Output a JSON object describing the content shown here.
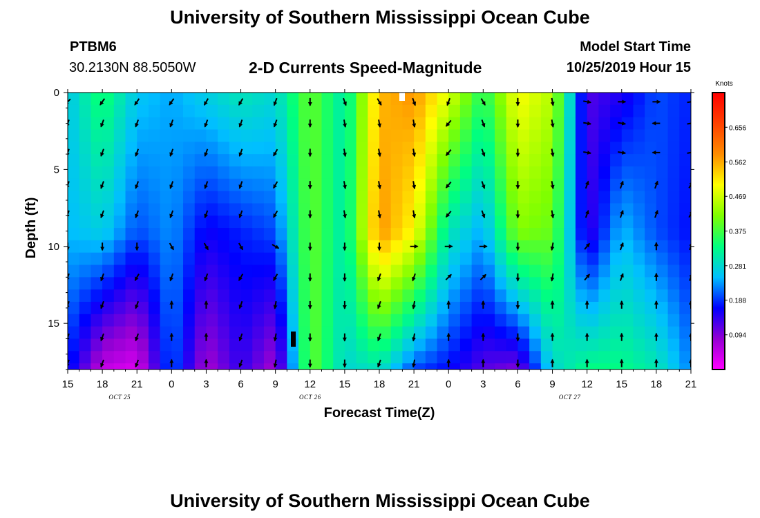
{
  "header": {
    "title": "University of Southern Mississippi Ocean Cube",
    "station": "PTBM6",
    "coords": "30.2130N 88.5050W",
    "subtitle": "2-D Currents Speed-Magnitude",
    "model_start_label": "Model Start Time",
    "model_start_value": "10/25/2019 Hour 15"
  },
  "footer": {
    "title": "University of Southern Mississippi Ocean Cube"
  },
  "chart_data": {
    "type": "heatmap",
    "title": "2-D Currents Speed-Magnitude",
    "xlabel": "Forecast Time(Z)",
    "ylabel": "Depth (ft)",
    "x_hours": [
      0,
      54
    ],
    "ylim": [
      0,
      18
    ],
    "x_ticks": [
      {
        "h": 0,
        "label": "15"
      },
      {
        "h": 3,
        "label": "18"
      },
      {
        "h": 6,
        "label": "21"
      },
      {
        "h": 9,
        "label": "0"
      },
      {
        "h": 12,
        "label": "3"
      },
      {
        "h": 15,
        "label": "6"
      },
      {
        "h": 18,
        "label": "9"
      },
      {
        "h": 21,
        "label": "12"
      },
      {
        "h": 24,
        "label": "15"
      },
      {
        "h": 27,
        "label": "18"
      },
      {
        "h": 30,
        "label": "21"
      },
      {
        "h": 33,
        "label": "0"
      },
      {
        "h": 36,
        "label": "3"
      },
      {
        "h": 39,
        "label": "6"
      },
      {
        "h": 42,
        "label": "9"
      },
      {
        "h": 45,
        "label": "12"
      },
      {
        "h": 48,
        "label": "15"
      },
      {
        "h": 51,
        "label": "18"
      },
      {
        "h": 54,
        "label": "21"
      }
    ],
    "date_labels": [
      {
        "h": 4.5,
        "label": "OCT 25"
      },
      {
        "h": 21,
        "label": "OCT 26"
      },
      {
        "h": 43.5,
        "label": "OCT 27"
      }
    ],
    "y_ticks": [
      0,
      5,
      10,
      15
    ],
    "colorbar": {
      "title": "Knots",
      "range": [
        0,
        0.75
      ],
      "labels": [
        "0.656",
        "0.562",
        "0.469",
        "0.375",
        "0.281",
        "0.188",
        "0.094"
      ],
      "label_values": [
        0.656,
        0.562,
        0.469,
        0.375,
        0.281,
        0.188,
        0.094
      ],
      "colors": [
        "#ff00ff",
        "#9400d3",
        "#0000ff",
        "#00bfff",
        "#00ff80",
        "#7fff00",
        "#ffff00",
        "#ff8c00",
        "#ff4000",
        "#ff0000"
      ]
    },
    "depth_levels": [
      0.6,
      2.0,
      3.9,
      6.0,
      7.9,
      10.0,
      12.0,
      13.8,
      15.9,
      17.6
    ],
    "speed_profiles": [
      {
        "h": 0,
        "top": 0.26,
        "mid": 0.25,
        "bot": 0.18
      },
      {
        "h": 3,
        "top": 0.35,
        "mid": 0.27,
        "bot": 0.05
      },
      {
        "h": 6,
        "top": 0.26,
        "mid": 0.2,
        "bot": 0.03
      },
      {
        "h": 9,
        "top": 0.24,
        "mid": 0.23,
        "bot": 0.21
      },
      {
        "h": 12,
        "top": 0.27,
        "mid": 0.16,
        "bot": 0.07
      },
      {
        "h": 15,
        "top": 0.3,
        "mid": 0.18,
        "bot": 0.14
      },
      {
        "h": 18,
        "top": 0.28,
        "mid": 0.2,
        "bot": 0.07
      },
      {
        "h": 21,
        "top": 0.4,
        "mid": 0.4,
        "bot": 0.4
      },
      {
        "h": 24,
        "top": 0.3,
        "mid": 0.3,
        "bot": 0.28
      },
      {
        "h": 27,
        "top": 0.55,
        "mid": 0.58,
        "bot": 0.3
      },
      {
        "h": 30,
        "top": 0.58,
        "mid": 0.5,
        "bot": 0.2
      },
      {
        "h": 33,
        "top": 0.48,
        "mid": 0.3,
        "bot": 0.17
      },
      {
        "h": 36,
        "top": 0.35,
        "mid": 0.24,
        "bot": 0.12
      },
      {
        "h": 39,
        "top": 0.5,
        "mid": 0.42,
        "bot": 0.1
      },
      {
        "h": 42,
        "top": 0.45,
        "mid": 0.4,
        "bot": 0.28
      },
      {
        "h": 45,
        "top": 0.12,
        "mid": 0.13,
        "bot": 0.33
      },
      {
        "h": 48,
        "top": 0.15,
        "mid": 0.25,
        "bot": 0.33
      },
      {
        "h": 51,
        "top": 0.2,
        "mid": 0.2,
        "bot": 0.3
      },
      {
        "h": 54,
        "top": 0.18,
        "mid": 0.17,
        "bot": 0.22
      }
    ],
    "vector_hours": [
      0,
      3,
      6,
      9,
      12,
      15,
      18,
      21,
      24,
      27,
      30,
      33,
      36,
      39,
      42,
      45,
      48,
      51,
      54
    ],
    "vector_directions_deg": [
      [
        225,
        215,
        215,
        215,
        210,
        210,
        200,
        180,
        160,
        150,
        160,
        200,
        150,
        180,
        170,
        100,
        90,
        90,
        80
      ],
      [
        200,
        200,
        200,
        200,
        200,
        200,
        200,
        180,
        170,
        170,
        170,
        220,
        160,
        180,
        170,
        100,
        100,
        270,
        80
      ],
      [
        200,
        200,
        200,
        200,
        200,
        200,
        210,
        180,
        170,
        170,
        170,
        220,
        160,
        180,
        170,
        100,
        100,
        270,
        80
      ],
      [
        200,
        200,
        200,
        200,
        200,
        200,
        210,
        180,
        170,
        170,
        170,
        220,
        160,
        180,
        170,
        20,
        20,
        20,
        30
      ],
      [
        200,
        200,
        200,
        200,
        200,
        200,
        210,
        180,
        170,
        170,
        170,
        220,
        160,
        180,
        170,
        20,
        20,
        20,
        30
      ],
      [
        180,
        180,
        180,
        150,
        150,
        150,
        120,
        180,
        180,
        180,
        90,
        90,
        90,
        180,
        190,
        40,
        20,
        0,
        20
      ],
      [
        200,
        200,
        210,
        200,
        200,
        210,
        210,
        180,
        180,
        200,
        200,
        45,
        45,
        180,
        190,
        40,
        20,
        0,
        20
      ],
      [
        200,
        200,
        200,
        0,
        0,
        200,
        190,
        180,
        180,
        200,
        190,
        0,
        0,
        180,
        0,
        0,
        0,
        0,
        0
      ],
      [
        200,
        200,
        200,
        0,
        0,
        200,
        190,
        180,
        180,
        200,
        190,
        0,
        0,
        180,
        0,
        0,
        0,
        0,
        0
      ],
      [
        200,
        200,
        200,
        0,
        0,
        200,
        190,
        180,
        180,
        200,
        190,
        0,
        0,
        180,
        0,
        0,
        0,
        0,
        0
      ]
    ]
  }
}
